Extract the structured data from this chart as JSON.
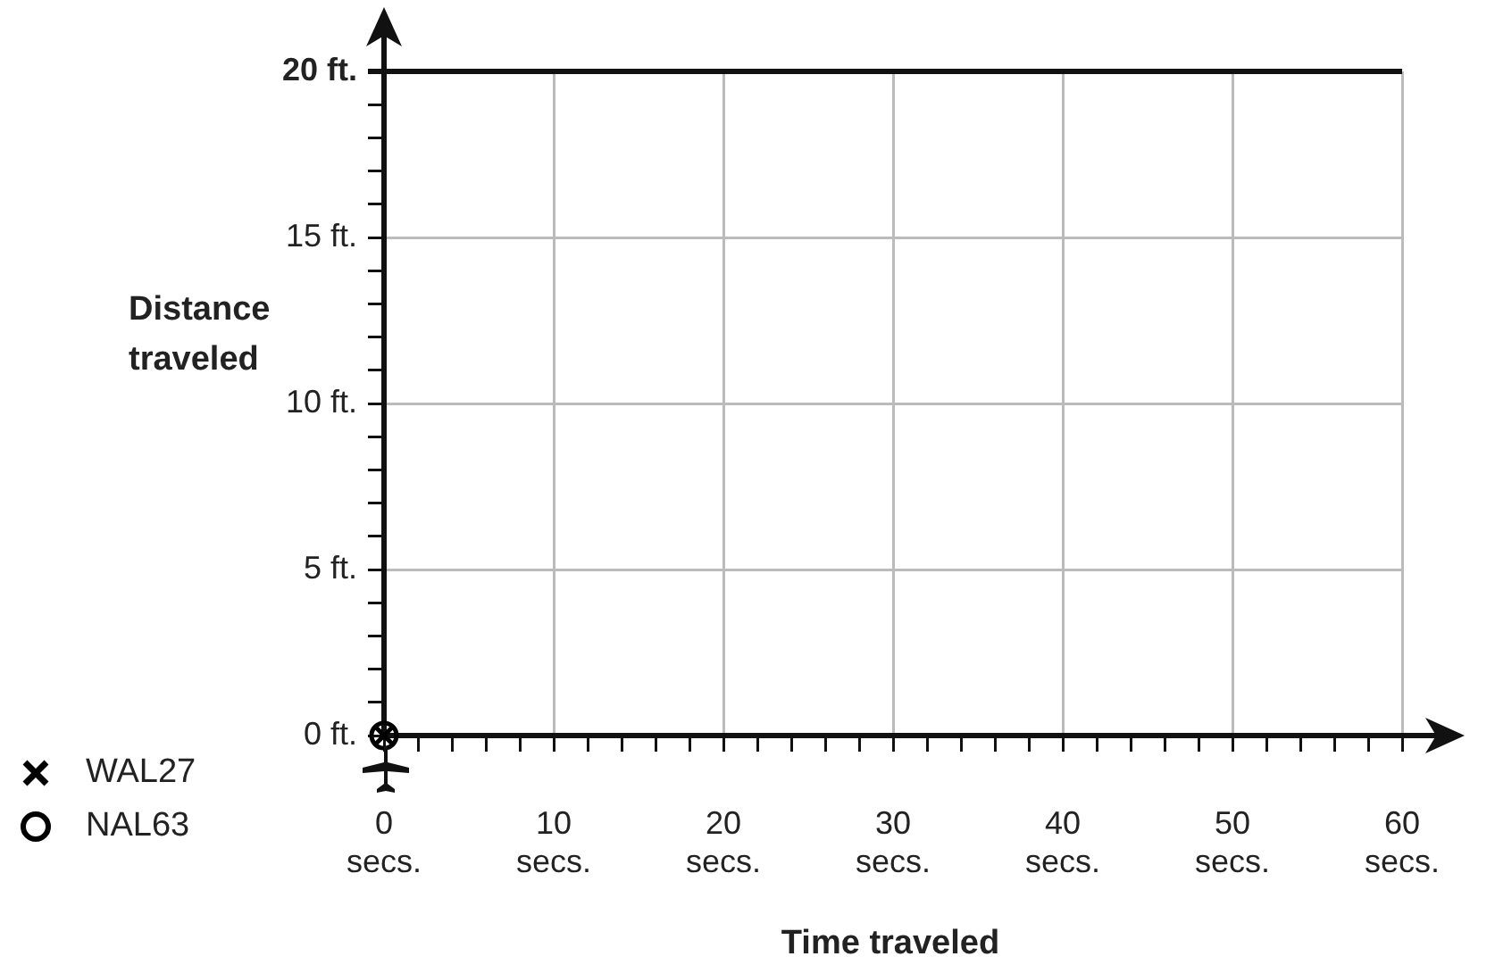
{
  "chart_data": {
    "type": "scatter",
    "xlabel": "Time traveled",
    "ylabel": "Distance traveled",
    "series": [
      {
        "name": "WAL27",
        "color": "#000000",
        "marker": "cross",
        "x": [
          0
        ],
        "values": [
          0
        ]
      },
      {
        "name": "NAL63",
        "color": "#000000",
        "marker": "circle",
        "x": [
          0
        ],
        "values": [
          0
        ]
      }
    ],
    "xlim": [
      0,
      60
    ],
    "xticks": [
      {
        "value": 0,
        "label": "0 secs."
      },
      {
        "value": 2,
        "label": null
      },
      {
        "value": 4,
        "label": null
      },
      {
        "value": 6,
        "label": null
      },
      {
        "value": 8,
        "label": null
      },
      {
        "value": 10,
        "label": "10 secs."
      },
      {
        "value": 12,
        "label": null
      },
      {
        "value": 14,
        "label": null
      },
      {
        "value": 16,
        "label": null
      },
      {
        "value": 18,
        "label": null
      },
      {
        "value": 20,
        "label": "20 secs."
      },
      {
        "value": 22,
        "label": null
      },
      {
        "value": 24,
        "label": null
      },
      {
        "value": 26,
        "label": null
      },
      {
        "value": 28,
        "label": null
      },
      {
        "value": 30,
        "label": "30 secs."
      },
      {
        "value": 32,
        "label": null
      },
      {
        "value": 34,
        "label": null
      },
      {
        "value": 36,
        "label": null
      },
      {
        "value": 38,
        "label": null
      },
      {
        "value": 40,
        "label": "40 secs."
      },
      {
        "value": 42,
        "label": null
      },
      {
        "value": 44,
        "label": null
      },
      {
        "value": 46,
        "label": null
      },
      {
        "value": 48,
        "label": null
      },
      {
        "value": 50,
        "label": "50 secs."
      },
      {
        "value": 52,
        "label": null
      },
      {
        "value": 54,
        "label": null
      },
      {
        "value": 56,
        "label": null
      },
      {
        "value": 58,
        "label": null
      },
      {
        "value": 60,
        "label": "60 secs."
      }
    ],
    "ylim": [
      0,
      20
    ],
    "yticks": [
      {
        "value": 0,
        "label": "0 ft."
      },
      {
        "value": 1,
        "label": null
      },
      {
        "value": 2,
        "label": null
      },
      {
        "value": 3,
        "label": null
      },
      {
        "value": 4,
        "label": null
      },
      {
        "value": 5,
        "label": "5 ft."
      },
      {
        "value": 6,
        "label": null
      },
      {
        "value": 7,
        "label": null
      },
      {
        "value": 8,
        "label": null
      },
      {
        "value": 9,
        "label": null
      },
      {
        "value": 10,
        "label": "10 ft."
      },
      {
        "value": 11,
        "label": null
      },
      {
        "value": 12,
        "label": null
      },
      {
        "value": 13,
        "label": null
      },
      {
        "value": 14,
        "label": null
      },
      {
        "value": 15,
        "label": "15 ft."
      },
      {
        "value": 16,
        "label": null
      },
      {
        "value": 17,
        "label": null
      },
      {
        "value": 18,
        "label": null
      },
      {
        "value": 19,
        "label": null
      },
      {
        "value": 20,
        "label": "20 ft."
      }
    ],
    "grid": true,
    "legend": "bottom left"
  }
}
